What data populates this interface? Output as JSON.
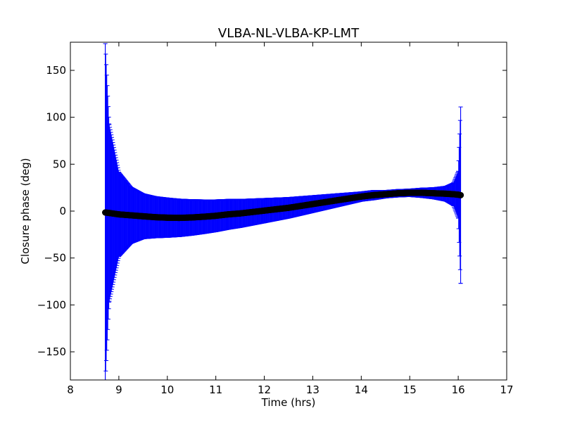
{
  "chart_data": {
    "type": "scatter",
    "title": "VLBA-NL-VLBA-KP-LMT",
    "xlabel": "Time (hrs)",
    "ylabel": "Closure phase (deg)",
    "xlim": [
      8,
      17
    ],
    "ylim": [
      -180,
      180
    ],
    "xticks": [
      8,
      9,
      10,
      11,
      12,
      13,
      14,
      15,
      16,
      17
    ],
    "yticks": [
      -150,
      -100,
      -50,
      0,
      50,
      100,
      150
    ],
    "grid": false,
    "series": [
      {
        "marker_color": "#000000",
        "errorbar_color": "#0000ff",
        "x": [
          8.72,
          8.8,
          9.0,
          9.25,
          9.5,
          9.75,
          10.0,
          10.25,
          10.5,
          10.75,
          11.0,
          11.25,
          11.5,
          11.75,
          12.0,
          12.25,
          12.5,
          12.75,
          13.0,
          13.25,
          13.5,
          13.75,
          14.0,
          14.25,
          14.5,
          14.75,
          15.0,
          15.25,
          15.5,
          15.75,
          15.9,
          16.0,
          16.05
        ],
        "y": [
          -1.5,
          -2,
          -3.5,
          -4.5,
          -5.5,
          -6.5,
          -7,
          -7.2,
          -6.8,
          -6,
          -5,
          -3.5,
          -2.5,
          -1,
          0.5,
          2,
          3.5,
          5.5,
          7.5,
          9.5,
          11.5,
          13.5,
          15.5,
          17,
          18,
          19,
          19.5,
          19.5,
          19,
          18.5,
          18,
          17.5,
          17
        ],
        "err": [
          180,
          95,
          45,
          30,
          24,
          22,
          21,
          20,
          19,
          18,
          17,
          16,
          15,
          14,
          13,
          12,
          11,
          10,
          9,
          8,
          7,
          6,
          5,
          5,
          4,
          4,
          4,
          5,
          6,
          8,
          12,
          25,
          94
        ]
      }
    ]
  }
}
